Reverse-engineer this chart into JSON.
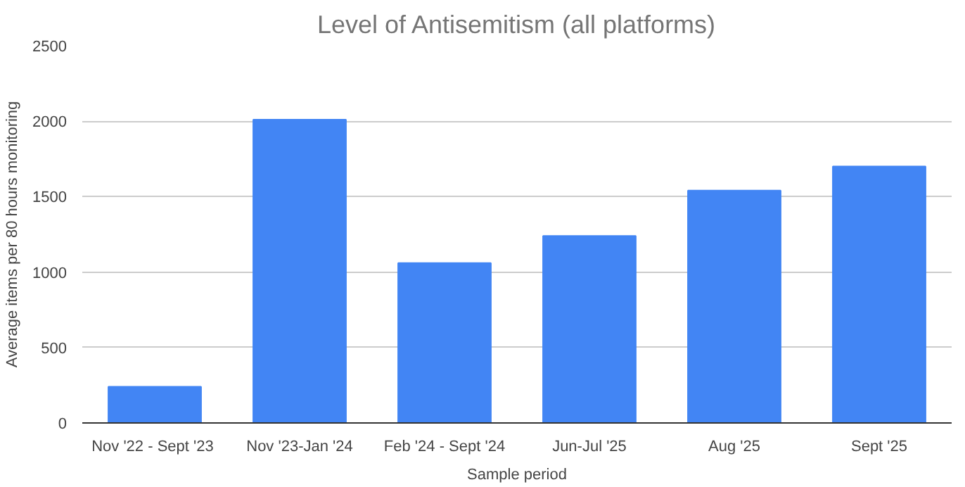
{
  "chart_data": {
    "type": "bar",
    "title": "Level of Antisemitism (all platforms)",
    "xlabel": "Sample period",
    "ylabel": "Average items per 80 hours monitoring",
    "categories": [
      "Nov '22  - Sept '23",
      "Nov '23-Jan '24",
      "Feb '24 - Sept '24",
      "Jun-Jul '25",
      "Aug '25",
      "Sept '25"
    ],
    "values": [
      240,
      2010,
      1060,
      1240,
      1540,
      1700
    ],
    "color": "#4285f4",
    "ylim": [
      0,
      2500
    ],
    "yticks": [
      0,
      500,
      1000,
      1500,
      2000,
      2500
    ],
    "grid": "y"
  }
}
